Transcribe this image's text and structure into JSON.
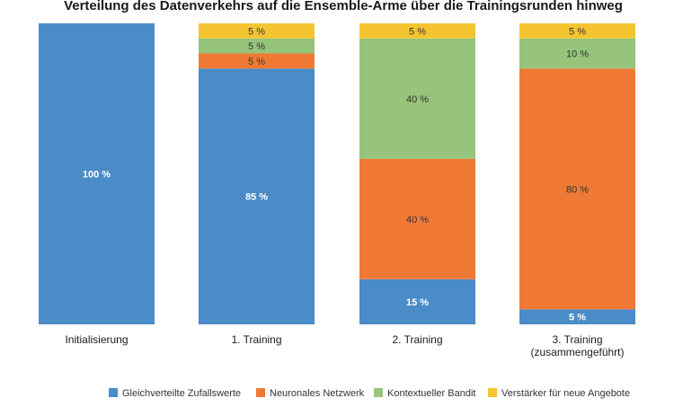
{
  "chart_data": {
    "type": "bar",
    "stacked": true,
    "title": "Verteilung des Datenverkehrs auf die Ensemble-Arme über die Trainingsrunden hinweg",
    "xlabel": "",
    "ylabel": "",
    "ylim": [
      0,
      100
    ],
    "grid": false,
    "legend_position": "bottom",
    "categories": [
      [
        "Initialisierung"
      ],
      [
        "1. Training"
      ],
      [
        "2. Training"
      ],
      [
        "3. Training",
        "(zusammengeführt)"
      ]
    ],
    "series": [
      {
        "name": "Gleichverteilte Zufallswerte",
        "color": "#4a8cc7",
        "label_color": "#ffffff",
        "values": [
          100,
          85,
          15,
          5
        ],
        "labels": [
          "100 %",
          "85 %",
          "15 %",
          "5 %"
        ]
      },
      {
        "name": "Neuronales Netzwerk",
        "color": "#f07a35",
        "label_color": "#333333",
        "values": [
          0,
          5,
          40,
          80
        ],
        "labels": [
          "",
          "5 %",
          "40 %",
          "80 %"
        ]
      },
      {
        "name": "Kontextueller Bandit",
        "color": "#95c47a",
        "label_color": "#333333",
        "values": [
          0,
          5,
          40,
          10
        ],
        "labels": [
          "",
          "5 %",
          "40 %",
          "10 %"
        ]
      },
      {
        "name": "Verstärker für neue Angebote",
        "color": "#f5c531",
        "label_color": "#333333",
        "values": [
          0,
          5,
          5,
          5
        ],
        "labels": [
          "",
          "5 %",
          "5 %",
          "5 %"
        ]
      }
    ]
  }
}
